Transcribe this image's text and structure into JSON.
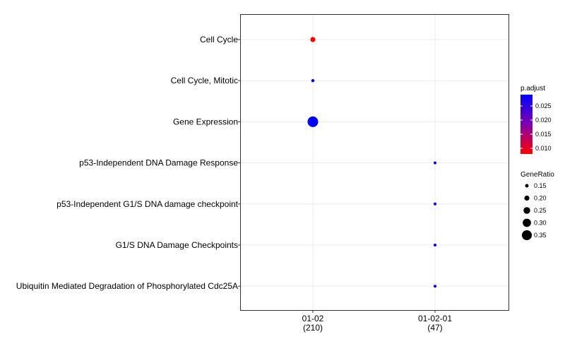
{
  "chart_data": {
    "type": "dotplot",
    "title": "",
    "xlabel": "",
    "ylabel": "",
    "categories_x": [
      {
        "label": "01-02",
        "count": "(210)"
      },
      {
        "label": "01-02-01",
        "count": "(47)"
      }
    ],
    "categories_y": [
      "Cell Cycle",
      "Cell Cycle, Mitotic",
      "Gene Expression",
      "p53-Independent DNA Damage Response",
      "p53-Independent G1/S DNA damage checkpoint",
      "G1/S DNA Damage Checkpoints",
      "Ubiquitin Mediated Degradation of Phosphorylated Cdc25A"
    ],
    "points": [
      {
        "x": "01-02",
        "y": "Cell Cycle",
        "gene_ratio": 0.2,
        "p_adjust": 0.008
      },
      {
        "x": "01-02",
        "y": "Cell Cycle, Mitotic",
        "gene_ratio": 0.14,
        "p_adjust": 0.029
      },
      {
        "x": "01-02",
        "y": "Gene Expression",
        "gene_ratio": 0.37,
        "p_adjust": 0.029
      },
      {
        "x": "01-02-01",
        "y": "p53-Independent DNA Damage Response",
        "gene_ratio": 0.13,
        "p_adjust": 0.029
      },
      {
        "x": "01-02-01",
        "y": "p53-Independent G1/S DNA damage checkpoint",
        "gene_ratio": 0.13,
        "p_adjust": 0.029
      },
      {
        "x": "01-02-01",
        "y": "G1/S DNA Damage Checkpoints",
        "gene_ratio": 0.13,
        "p_adjust": 0.029
      },
      {
        "x": "01-02-01",
        "y": "Ubiquitin Mediated Degradation of Phosphorylated Cdc25A",
        "gene_ratio": 0.13,
        "p_adjust": 0.029
      }
    ],
    "grid": true,
    "legend_position": "right",
    "color_legend": {
      "title": "p.adjust",
      "ticks": [
        "0.025",
        "0.020",
        "0.015",
        "0.010"
      ],
      "tick_values": [
        0.025,
        0.02,
        0.015,
        0.01
      ],
      "range": [
        0.008,
        0.029
      ],
      "low_color": "#ff0000",
      "high_color": "#0000ff"
    },
    "size_legend": {
      "title": "GeneRatio",
      "labels": [
        "0.15",
        "0.20",
        "0.25",
        "0.30",
        "0.35"
      ],
      "values": [
        0.15,
        0.2,
        0.25,
        0.3,
        0.35
      ]
    }
  }
}
